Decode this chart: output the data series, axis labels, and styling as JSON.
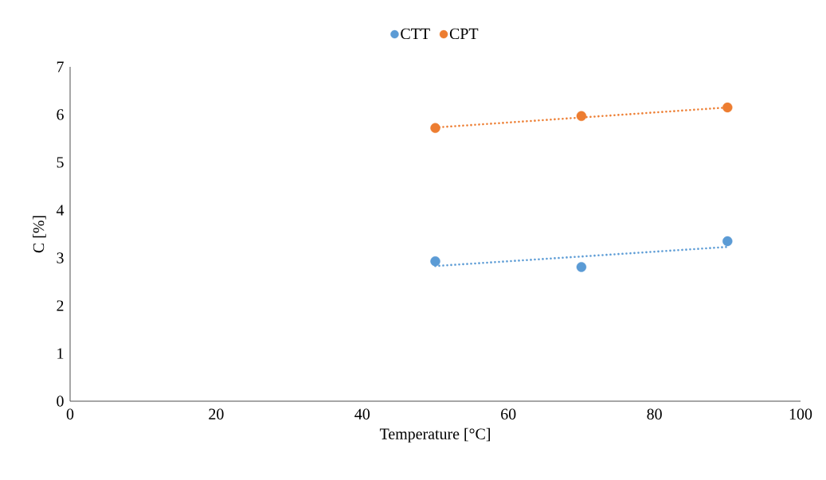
{
  "chart_data": {
    "type": "scatter",
    "xlabel": "Temperature [°C]",
    "ylabel": "C [%]",
    "xlim": [
      0,
      100
    ],
    "xticks": [
      0,
      20,
      40,
      60,
      80,
      100
    ],
    "ylim": [
      0,
      7
    ],
    "yticks": [
      0,
      1,
      2,
      3,
      4,
      5,
      6,
      7
    ],
    "grid": false,
    "legend": "top",
    "series": [
      {
        "name": "CTT",
        "color": "#5b9bd5",
        "marker": "circle",
        "x": [
          50,
          70,
          90
        ],
        "values": [
          2.93,
          2.81,
          3.35
        ]
      },
      {
        "name": "CPT",
        "color": "#ed7d31",
        "marker": "circle",
        "x": [
          50,
          70,
          90
        ],
        "values": [
          5.72,
          5.97,
          6.15
        ]
      },
      {
        "type": "line",
        "color": "#5b9bd5",
        "line_style": "dotted",
        "marker": "none",
        "x": [
          50,
          90
        ],
        "values": [
          2.83,
          3.23
        ]
      },
      {
        "type": "line",
        "color": "#ed7d31",
        "line_style": "dotted",
        "marker": "none",
        "x": [
          50,
          90
        ],
        "values": [
          5.73,
          6.15
        ]
      }
    ]
  }
}
